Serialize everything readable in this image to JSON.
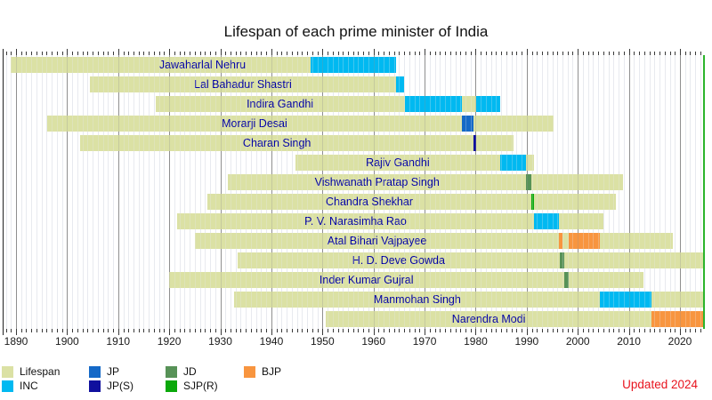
{
  "updated_note": "Updated 2024",
  "colors": {
    "lifespan": "#dbe1a4",
    "INC": "#00b9f1",
    "JP": "#1569c7",
    "JP(S)": "#10109e",
    "JD": "#579257",
    "SJP(R)": "#0aa80a",
    "BJP": "#f8953f",
    "now_line": "#2cb42c",
    "pm_label_text": "#0000a6",
    "updated_text": "#e8141e"
  },
  "legend": {
    "columns": [
      [
        {
          "key": "lifespan",
          "label": "Lifespan"
        },
        {
          "key": "INC",
          "label": "INC"
        }
      ],
      [
        {
          "key": "JP",
          "label": "JP"
        },
        {
          "key": "JP(S)",
          "label": "JP(S)"
        }
      ],
      [
        {
          "key": "JD",
          "label": "JD"
        },
        {
          "key": "SJP(R)",
          "label": "SJP(R)"
        }
      ],
      [
        {
          "key": "BJP",
          "label": "BJP"
        }
      ]
    ]
  },
  "chart_data": {
    "type": "timeline",
    "title": "Lifespan of each prime minister of India",
    "x_axis": {
      "unit": "year",
      "range": [
        1888,
        2025
      ],
      "decade_tick_labels": [
        "1890",
        "1900",
        "1910",
        "1920",
        "1930",
        "1940",
        "1950",
        "1960",
        "1970",
        "1980",
        "1990",
        "2000",
        "2010",
        "2020"
      ]
    },
    "now_marker_year": 2024.6,
    "prime_ministers": [
      {
        "name": "Jawaharlal Nehru",
        "birth": 1889.0,
        "death": 1964.41,
        "alive": false,
        "label_year": 1926.5,
        "terms": [
          {
            "party": "INC",
            "start": 1947.62,
            "end": 1964.41
          }
        ]
      },
      {
        "name": "Lal Bahadur Shastri",
        "birth": 1904.4,
        "death": 1966.03,
        "alive": false,
        "terms": [
          {
            "party": "INC",
            "start": 1964.44,
            "end": 1966.03
          }
        ]
      },
      {
        "name": "Indira Gandhi",
        "birth": 1917.3,
        "death": 1984.83,
        "alive": false,
        "terms": [
          {
            "party": "INC",
            "start": 1966.07,
            "end": 1977.23
          },
          {
            "party": "INC",
            "start": 1980.04,
            "end": 1984.83
          }
        ]
      },
      {
        "name": "Morarji Desai",
        "birth": 1896.16,
        "death": 1995.27,
        "alive": false,
        "terms": [
          {
            "party": "JP",
            "start": 1977.23,
            "end": 1979.57
          }
        ]
      },
      {
        "name": "Charan Singh",
        "birth": 1902.6,
        "death": 1987.41,
        "alive": false,
        "terms": [
          {
            "party": "JP(S)",
            "start": 1979.57,
            "end": 1980.04
          }
        ]
      },
      {
        "name": "Rajiv Gandhi",
        "birth": 1944.64,
        "death": 1991.38,
        "alive": false,
        "terms": [
          {
            "party": "INC",
            "start": 1984.83,
            "end": 1989.92
          }
        ]
      },
      {
        "name": "Vishwanath Pratap Singh",
        "birth": 1931.48,
        "death": 2008.9,
        "alive": false,
        "terms": [
          {
            "party": "JD",
            "start": 1989.92,
            "end": 1990.86
          }
        ]
      },
      {
        "name": "Chandra Shekhar",
        "birth": 1927.5,
        "death": 2007.52,
        "alive": false,
        "terms": [
          {
            "party": "SJP(R)",
            "start": 1990.86,
            "end": 1991.47
          }
        ]
      },
      {
        "name": "P. V. Narasimha Rao",
        "birth": 1921.49,
        "death": 2004.98,
        "alive": false,
        "terms": [
          {
            "party": "INC",
            "start": 1991.47,
            "end": 1996.37
          }
        ]
      },
      {
        "name": "Atal Bihari Vajpayee",
        "birth": 1924.98,
        "death": 2018.62,
        "alive": false,
        "terms": [
          {
            "party": "BJP",
            "start": 1996.37,
            "end": 1996.42
          },
          {
            "party": "BJP",
            "start": 1998.21,
            "end": 2004.39
          }
        ]
      },
      {
        "name": "H. D. Deve Gowda",
        "birth": 1933.38,
        "death": null,
        "alive": true,
        "terms": [
          {
            "party": "JD",
            "start": 1996.42,
            "end": 1997.3
          }
        ]
      },
      {
        "name": "Inder Kumar Gujral",
        "birth": 1919.92,
        "death": 2012.91,
        "alive": false,
        "terms": [
          {
            "party": "JD",
            "start": 1997.3,
            "end": 1998.21
          }
        ]
      },
      {
        "name": "Manmohan Singh",
        "birth": 1932.74,
        "death": null,
        "alive": true,
        "terms": [
          {
            "party": "INC",
            "start": 2004.39,
            "end": 2014.4
          }
        ]
      },
      {
        "name": "Narendra Modi",
        "birth": 1950.71,
        "death": null,
        "alive": true,
        "terms": [
          {
            "party": "BJP",
            "start": 2014.4,
            "end": 2024.6
          }
        ]
      }
    ]
  }
}
